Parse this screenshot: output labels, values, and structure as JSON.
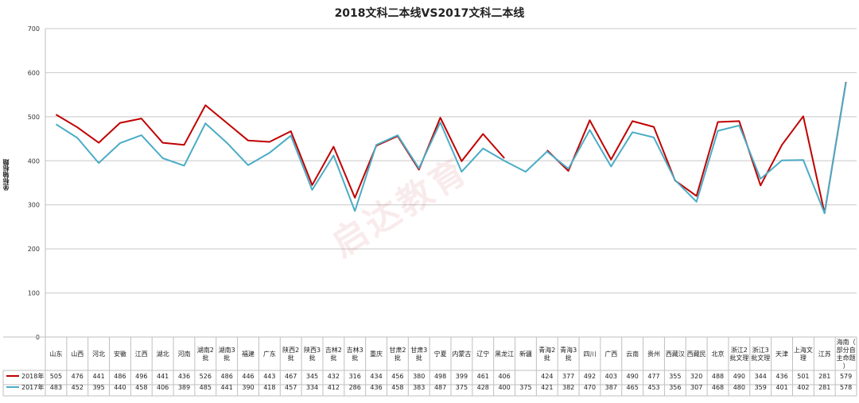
{
  "chart_data": {
    "type": "line",
    "title": "2018文科二本线VS2017文科二本线",
    "ylabel": "坐标轴标题",
    "ylim": [
      0,
      700
    ],
    "yticks": [
      0,
      100,
      200,
      300,
      400,
      500,
      600,
      700
    ],
    "grid": true,
    "categories": [
      "山东",
      "山西",
      "河北",
      "安徽",
      "江西",
      "湖北",
      "河南",
      "湖南2批",
      "湖南3批",
      "福建",
      "广东",
      "陕西2批",
      "陕西3批",
      "吉林2批",
      "吉林3批",
      "重庆",
      "甘肃2批",
      "甘肃3批",
      "宁夏",
      "内蒙古",
      "辽宁",
      "黑龙江",
      "新疆",
      "青海2批",
      "青海3批",
      "四川",
      "广西",
      "云南",
      "贵州",
      "西藏汉",
      "西藏民",
      "北京",
      "浙江2批文理",
      "浙江3批文理",
      "天津",
      "上海文理",
      "江苏",
      "海南（部分自主命题）"
    ],
    "series": [
      {
        "name": "2018年",
        "color": "#c00000",
        "values": [
          505,
          476,
          441,
          486,
          496,
          441,
          436,
          526,
          486,
          446,
          443,
          467,
          345,
          432,
          316,
          434,
          456,
          380,
          498,
          399,
          461,
          406,
          null,
          424,
          377,
          492,
          403,
          490,
          477,
          355,
          320,
          488,
          490,
          344,
          436,
          501,
          281,
          579
        ]
      },
      {
        "name": "2017年",
        "color": "#4bacc6",
        "values": [
          483,
          452,
          395,
          440,
          458,
          406,
          389,
          485,
          441,
          390,
          418,
          457,
          334,
          412,
          286,
          436,
          458,
          383,
          487,
          375,
          428,
          400,
          375,
          421,
          382,
          470,
          387,
          465,
          453,
          356,
          307,
          468,
          480,
          359,
          401,
          402,
          281,
          578
        ]
      }
    ]
  }
}
